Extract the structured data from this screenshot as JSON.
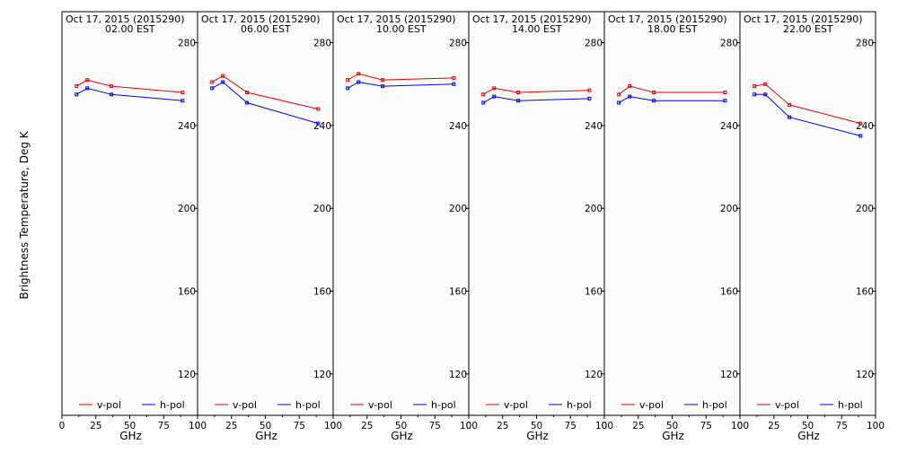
{
  "figure": {
    "ylabel": "Brightness Temperature, Deg K",
    "xlabel": "GHz",
    "background": "#fcfcfc",
    "colors": {
      "v_pol": "#e00000",
      "h_pol": "#0000e0"
    }
  },
  "chart_data": [
    {
      "type": "line",
      "title_date": "Oct 17, 2015 (2015290)",
      "title_time": "02.00 EST",
      "xlabel": "GHz",
      "ylabel": "Brightness Temperature, Deg K",
      "xlim": [
        0,
        100
      ],
      "ylim": [
        100,
        295
      ],
      "xticks": [
        0,
        25,
        50,
        75,
        100
      ],
      "yticks": [
        120,
        160,
        200,
        240,
        280
      ],
      "x": [
        10.7,
        18.7,
        36.5,
        89.0
      ],
      "series": [
        {
          "name": "v-pol",
          "values": [
            259,
            262,
            259,
            256
          ]
        },
        {
          "name": "h-pol",
          "values": [
            255,
            258,
            255,
            252
          ]
        }
      ],
      "legend": [
        "v-pol",
        "h-pol"
      ],
      "legend_position": "bottom"
    },
    {
      "type": "line",
      "title_date": "Oct 17, 2015 (2015290)",
      "title_time": "06.00 EST",
      "xlabel": "GHz",
      "ylabel": "Brightness Temperature, Deg K",
      "xlim": [
        0,
        100
      ],
      "ylim": [
        100,
        295
      ],
      "xticks": [
        0,
        25,
        50,
        75,
        100
      ],
      "yticks": [
        120,
        160,
        200,
        240,
        280
      ],
      "x": [
        10.7,
        18.7,
        36.5,
        89.0
      ],
      "series": [
        {
          "name": "v-pol",
          "values": [
            261,
            264,
            256,
            248
          ]
        },
        {
          "name": "h-pol",
          "values": [
            258,
            261,
            251,
            241
          ]
        }
      ],
      "legend": [
        "v-pol",
        "h-pol"
      ],
      "legend_position": "bottom"
    },
    {
      "type": "line",
      "title_date": "Oct 17, 2015 (2015290)",
      "title_time": "10.00 EST",
      "xlabel": "GHz",
      "ylabel": "Brightness Temperature, Deg K",
      "xlim": [
        0,
        100
      ],
      "ylim": [
        100,
        295
      ],
      "xticks": [
        0,
        25,
        50,
        75,
        100
      ],
      "yticks": [
        120,
        160,
        200,
        240,
        280
      ],
      "x": [
        10.7,
        18.7,
        36.5,
        89.0
      ],
      "series": [
        {
          "name": "v-pol",
          "values": [
            262,
            265,
            262,
            263
          ]
        },
        {
          "name": "h-pol",
          "values": [
            258,
            261,
            259,
            260
          ]
        }
      ],
      "legend": [
        "v-pol",
        "h-pol"
      ],
      "legend_position": "bottom"
    },
    {
      "type": "line",
      "title_date": "Oct 17, 2015 (2015290)",
      "title_time": "14.00 EST",
      "xlabel": "GHz",
      "ylabel": "Brightness Temperature, Deg K",
      "xlim": [
        0,
        100
      ],
      "ylim": [
        100,
        295
      ],
      "xticks": [
        0,
        25,
        50,
        75,
        100
      ],
      "yticks": [
        120,
        160,
        200,
        240,
        280
      ],
      "x": [
        10.7,
        18.7,
        36.5,
        89.0
      ],
      "series": [
        {
          "name": "v-pol",
          "values": [
            255,
            258,
            256,
            257
          ]
        },
        {
          "name": "h-pol",
          "values": [
            251,
            254,
            252,
            253
          ]
        }
      ],
      "legend": [
        "v-pol",
        "h-pol"
      ],
      "legend_position": "bottom"
    },
    {
      "type": "line",
      "title_date": "Oct 17, 2015 (2015290)",
      "title_time": "18.00 EST",
      "xlabel": "GHz",
      "ylabel": "Brightness Temperature, Deg K",
      "xlim": [
        0,
        100
      ],
      "ylim": [
        100,
        295
      ],
      "xticks": [
        0,
        25,
        50,
        75,
        100
      ],
      "yticks": [
        120,
        160,
        200,
        240,
        280
      ],
      "x": [
        10.7,
        18.7,
        36.5,
        89.0
      ],
      "series": [
        {
          "name": "v-pol",
          "values": [
            255,
            259,
            256,
            256
          ]
        },
        {
          "name": "h-pol",
          "values": [
            251,
            254,
            252,
            252
          ]
        }
      ],
      "legend": [
        "v-pol",
        "h-pol"
      ],
      "legend_position": "bottom"
    },
    {
      "type": "line",
      "title_date": "Oct 17, 2015 (2015290)",
      "title_time": "22.00 EST",
      "xlabel": "GHz",
      "ylabel": "Brightness Temperature, Deg K",
      "xlim": [
        0,
        100
      ],
      "ylim": [
        100,
        295
      ],
      "xticks": [
        0,
        25,
        50,
        75,
        100
      ],
      "yticks": [
        120,
        160,
        200,
        240,
        280
      ],
      "x": [
        10.7,
        18.7,
        36.5,
        89.0
      ],
      "series": [
        {
          "name": "v-pol",
          "values": [
            259,
            260,
            250,
            241
          ]
        },
        {
          "name": "h-pol",
          "values": [
            255,
            255,
            244,
            235
          ]
        }
      ],
      "legend": [
        "v-pol",
        "h-pol"
      ],
      "legend_position": "bottom"
    }
  ]
}
